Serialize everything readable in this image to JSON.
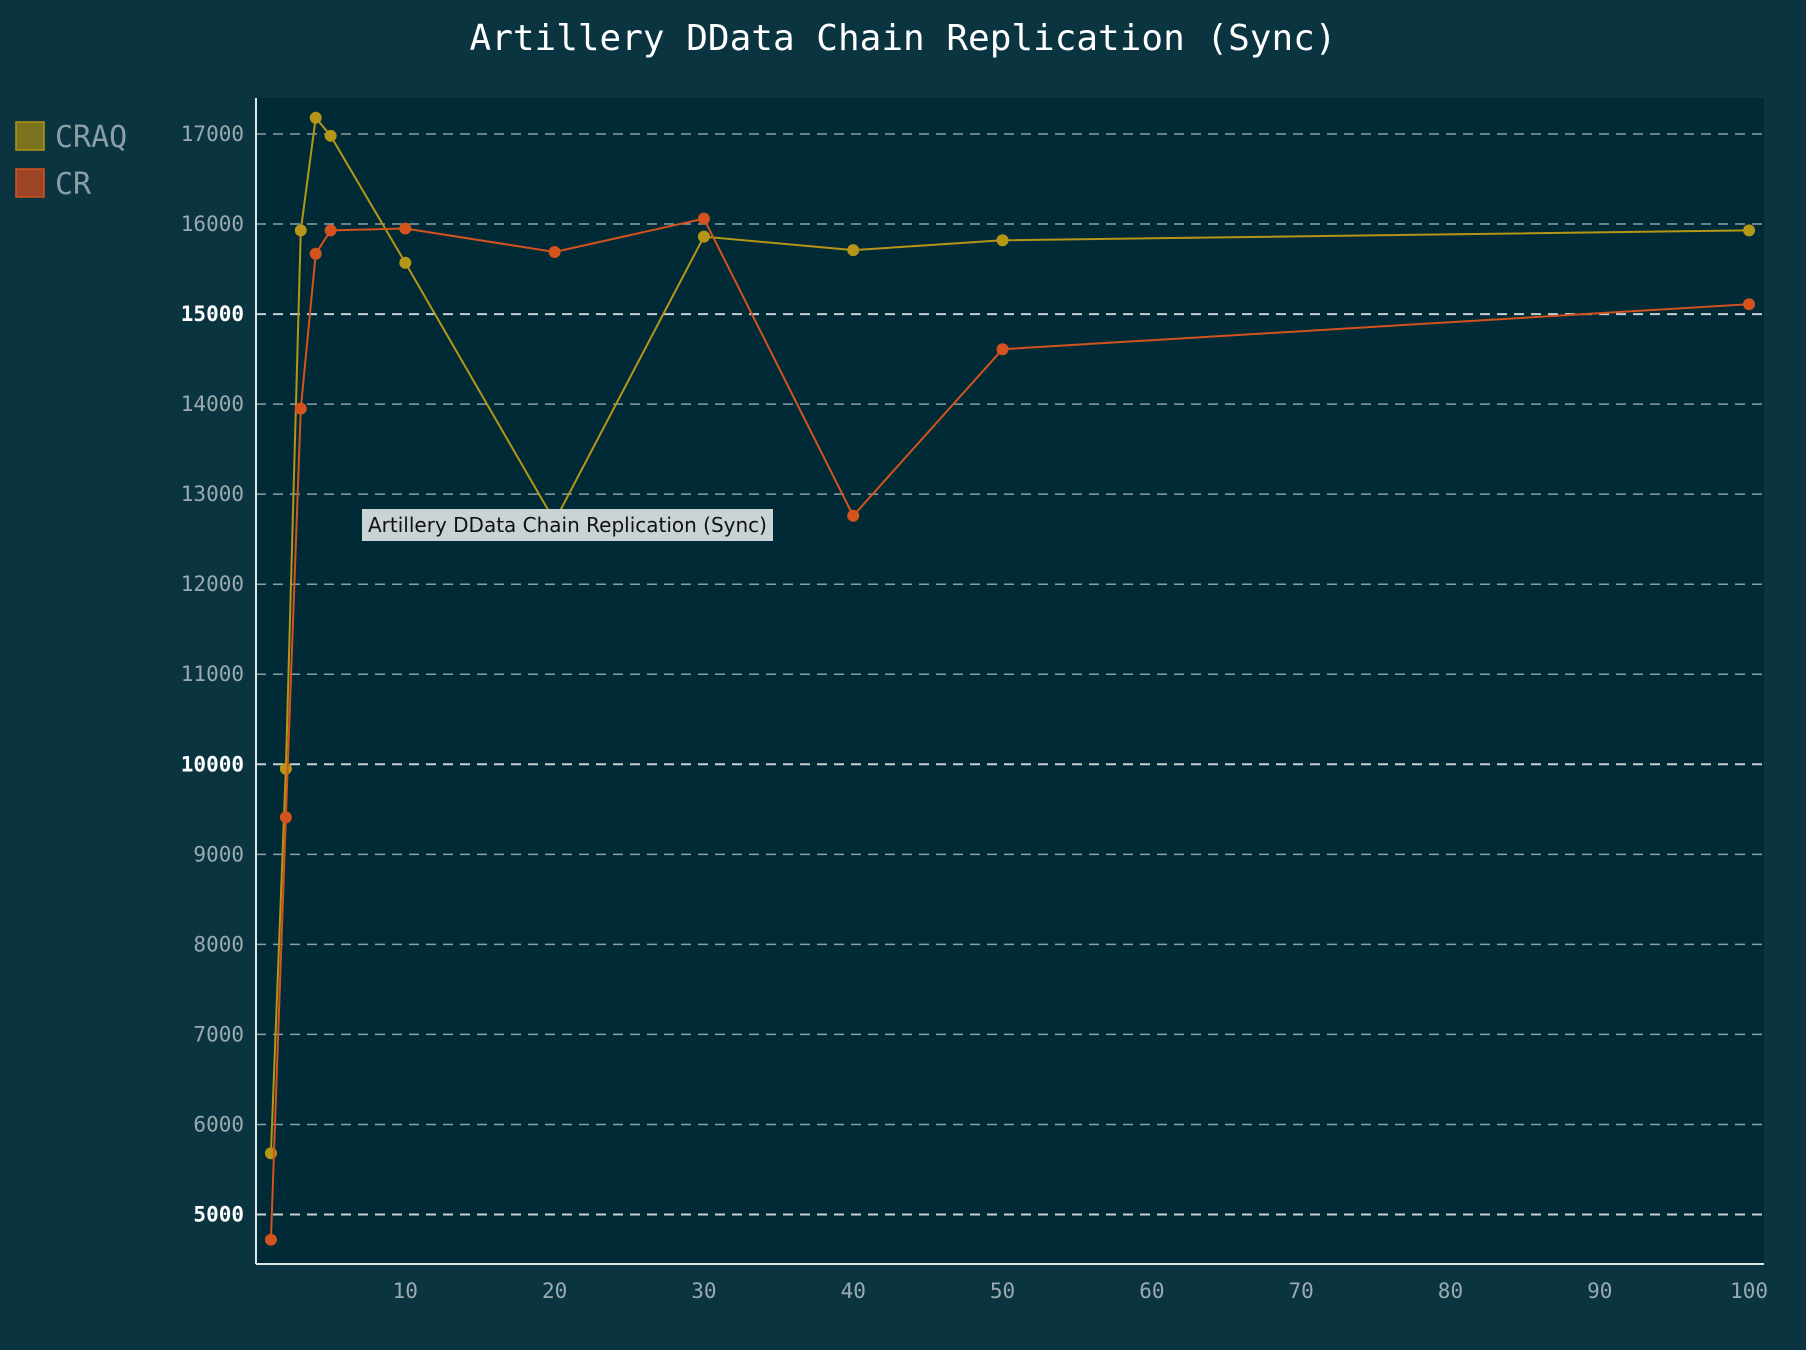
{
  "chart_data": {
    "type": "line",
    "title": "Artillery DData Chain Replication (Sync)",
    "xlabel": "",
    "ylabel": "",
    "xlim": [
      0,
      101
    ],
    "ylim": [
      4450,
      17400
    ],
    "x_ticks": [
      10,
      20,
      30,
      40,
      50,
      60,
      70,
      80,
      90,
      100
    ],
    "y_ticks": [
      5000,
      6000,
      7000,
      8000,
      9000,
      10000,
      11000,
      12000,
      13000,
      14000,
      15000,
      16000,
      17000
    ],
    "y_ticks_highlighted": [
      5000,
      10000,
      15000
    ],
    "grid": "horizontal-dashed",
    "legend_position": "top-left-outside",
    "series": [
      {
        "name": "CRAQ",
        "color": "#b59616",
        "swatch_color": "#7a7320",
        "points": [
          {
            "x": 1,
            "y": 5680
          },
          {
            "x": 2,
            "y": 9950
          },
          {
            "x": 3,
            "y": 15930
          },
          {
            "x": 4,
            "y": 17180
          },
          {
            "x": 5,
            "y": 16980
          },
          {
            "x": 10,
            "y": 15570
          },
          {
            "x": 20,
            "y": 12700
          },
          {
            "x": 30,
            "y": 15860
          },
          {
            "x": 40,
            "y": 15710
          },
          {
            "x": 50,
            "y": 15820
          },
          {
            "x": 100,
            "y": 15930
          }
        ]
      },
      {
        "name": "CR",
        "color": "#d4521e",
        "swatch_color": "#9c4426",
        "points": [
          {
            "x": 1,
            "y": 4720
          },
          {
            "x": 2,
            "y": 9410
          },
          {
            "x": 3,
            "y": 13950
          },
          {
            "x": 4,
            "y": 15670
          },
          {
            "x": 5,
            "y": 15930
          },
          {
            "x": 10,
            "y": 15950
          },
          {
            "x": 20,
            "y": 15690
          },
          {
            "x": 30,
            "y": 16060
          },
          {
            "x": 40,
            "y": 12760
          },
          {
            "x": 50,
            "y": 14610
          },
          {
            "x": 100,
            "y": 15110
          }
        ]
      }
    ],
    "tooltip": {
      "text": "Artillery DData Chain Replication (Sync)"
    }
  }
}
